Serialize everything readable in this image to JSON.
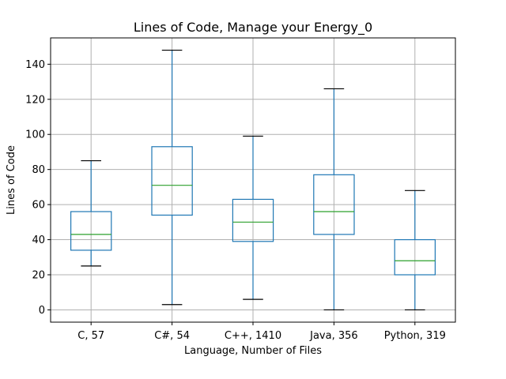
{
  "chart_data": {
    "type": "box",
    "title": "Lines of Code, Manage your Energy_0",
    "xlabel": "Language, Number of Files",
    "ylabel": "Lines of Code",
    "ylim": [
      -7,
      155
    ],
    "yticks": [
      0,
      20,
      40,
      60,
      80,
      100,
      120,
      140
    ],
    "grid": true,
    "categories": [
      "C, 57",
      "C#, 54",
      "C++, 1410",
      "Java, 356",
      "Python, 319"
    ],
    "boxes": [
      {
        "min": 25,
        "q1": 34,
        "median": 43,
        "q3": 56,
        "max": 85
      },
      {
        "min": 3,
        "q1": 54,
        "median": 71,
        "q3": 93,
        "max": 148
      },
      {
        "min": 6,
        "q1": 39,
        "median": 50,
        "q3": 63,
        "max": 99
      },
      {
        "min": 0,
        "q1": 43,
        "median": 56,
        "q3": 77,
        "max": 126
      },
      {
        "min": 0,
        "q1": 20,
        "median": 28,
        "q3": 40,
        "max": 68
      }
    ],
    "colors": {
      "box": "#1f77b4",
      "median": "#2ca02c",
      "cap": "#000000",
      "grid": "#b0b0b0"
    }
  }
}
